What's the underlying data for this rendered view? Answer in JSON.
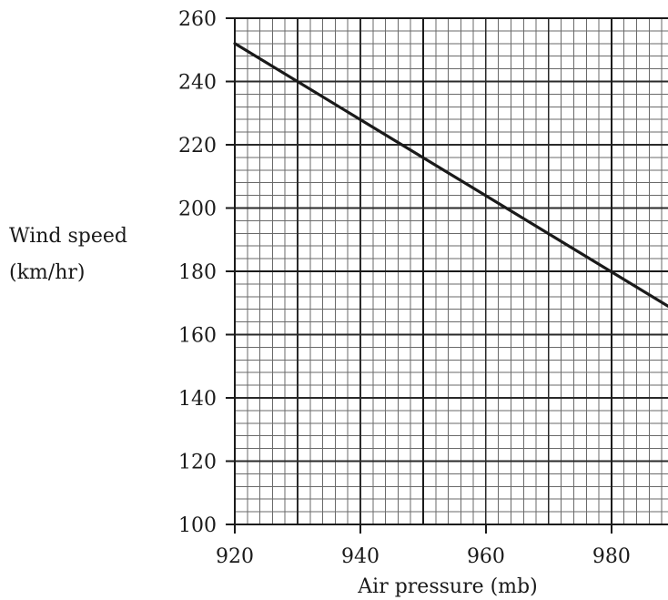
{
  "chart_data": {
    "type": "line",
    "title": "",
    "xlabel": "Air pressure (mb)",
    "ylabel_lines": [
      "Wind speed",
      "(km/hr)"
    ],
    "xlim": [
      920,
      989
    ],
    "ylim": [
      100,
      260
    ],
    "x_ticks": [
      920,
      940,
      960,
      980
    ],
    "x_tick_labels": [
      "920",
      "940",
      "960",
      "980"
    ],
    "y_ticks": [
      100,
      120,
      140,
      160,
      180,
      200,
      220,
      240,
      260
    ],
    "y_tick_labels": [
      "100",
      "120",
      "140",
      "160",
      "180",
      "200",
      "220",
      "240",
      "260"
    ],
    "grid": true,
    "grid_minor_x_step": 2,
    "grid_minor_y_step": 4,
    "grid_medium_x_step": 10,
    "grid_medium_y_step": 20,
    "grid_major_x_step": 30,
    "grid_major_y_step": 80,
    "series": [
      {
        "x": [
          920,
          989
        ],
        "y": [
          252,
          169
        ],
        "color": "#1a1a1a"
      }
    ]
  }
}
